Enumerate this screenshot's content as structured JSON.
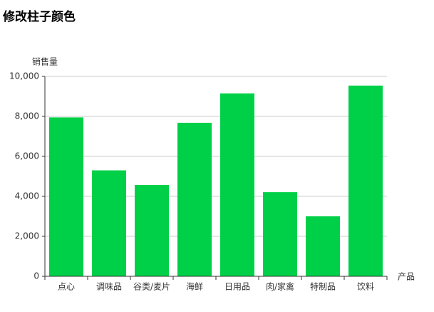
{
  "chart_data": {
    "type": "bar",
    "title": "修改柱子颜色",
    "y_label": "销售量",
    "x_label": "产品",
    "categories": [
      "点心",
      "调味品",
      "谷类/麦片",
      "海鲜",
      "日用品",
      "肉/家禽",
      "特制品",
      "饮料"
    ],
    "values": [
      7950,
      5300,
      4570,
      7680,
      9150,
      4210,
      3000,
      9540
    ],
    "color": "#00d048",
    "ylim": [
      0,
      10000
    ],
    "yticks": [
      0,
      {
        "value": 2000,
        "label": "2,000"
      },
      {
        "value": 4000,
        "label": "4,000"
      },
      {
        "value": 6000,
        "label": "6,000"
      },
      {
        "value": 8000,
        "label": "8,000"
      },
      {
        "value": 10000,
        "label": "10,000"
      }
    ],
    "grid": true
  }
}
